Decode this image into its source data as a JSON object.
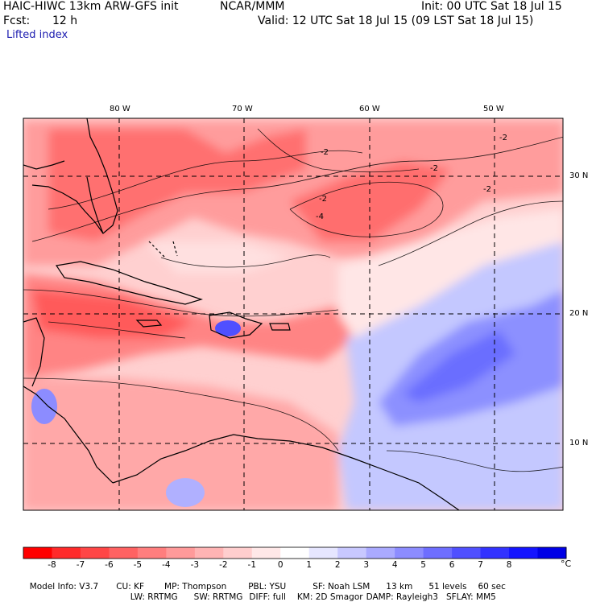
{
  "header": {
    "title_left": "HAIC-HIWC 13km ARW-GFS init",
    "title_mid": "NCAR/MMM",
    "init": "Init: 00 UTC Sat 18 Jul 15",
    "fcst_label": "Fcst:",
    "fcst_value": "12 h",
    "valid": "Valid: 12 UTC Sat 18 Jul 15 (09 LST Sat 18 Jul 15)",
    "field": "Lifted index"
  },
  "map": {
    "lon_labels": [
      "80 W",
      "70 W",
      "60 W",
      "50 W"
    ],
    "lat_labels": [
      "30 N",
      "20 N",
      "10 N"
    ],
    "contour_labels": [
      "-2",
      "-2",
      "-2",
      "-2",
      "-4",
      "-2"
    ]
  },
  "colorbar": {
    "unit": "°C",
    "ticks": [
      "-8",
      "-7",
      "-6",
      "-5",
      "-4",
      "-3",
      "-2",
      "-1",
      "0",
      "1",
      "2",
      "3",
      "4",
      "5",
      "6",
      "7",
      "8"
    ],
    "colors": [
      "#ff0000",
      "#ff2a2a",
      "#ff4646",
      "#ff6262",
      "#ff7e7e",
      "#ff9a9a",
      "#ffb4b4",
      "#ffcece",
      "#ffe8e8",
      "#ffffff",
      "#e6e6ff",
      "#c8c8ff",
      "#aaaaff",
      "#8c8cff",
      "#6e6eff",
      "#5050ff",
      "#3232ff",
      "#1414ff",
      "#0000e6"
    ]
  },
  "model_info": {
    "line1": [
      "Model Info: V3.7",
      "CU: KF",
      "MP: Thompson",
      "PBL: YSU",
      "SF: Noah LSM",
      "13 km",
      "51 levels",
      "60 sec"
    ],
    "line2": [
      "LW: RRTMG",
      "SW: RRTMG",
      "DIFF: full",
      "KM: 2D Smagor",
      "DAMP: Rayleigh3",
      "SFLAY: MM5"
    ]
  }
}
